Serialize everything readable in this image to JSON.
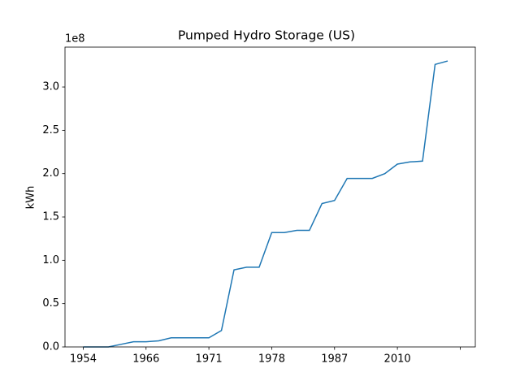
{
  "chart_data": {
    "type": "line",
    "title": "Pumped Hydro Storage (US)",
    "y_label": "kWh",
    "y_offset_label": "1e8",
    "x": [
      0,
      1,
      2,
      3,
      4,
      5,
      6,
      7,
      8,
      9,
      10,
      11,
      12,
      13,
      14,
      15,
      16,
      17,
      18,
      19,
      20,
      21,
      22,
      23,
      24,
      25,
      26,
      27,
      28,
      29
    ],
    "series": [
      {
        "name": "kWh",
        "color": "#1f77b4",
        "values": [
          0,
          0,
          0,
          3000000,
          6000000,
          6000000,
          7000000,
          10500000,
          10500000,
          10500000,
          10500000,
          19000000,
          89000000,
          92000000,
          92000000,
          132000000,
          132000000,
          134500000,
          134500000,
          165500000,
          169000000,
          194500000,
          194500000,
          194500000,
          200000000,
          211000000,
          213500000,
          214500000,
          326000000,
          330000000
        ]
      }
    ],
    "xlim": [
      -1.45,
      31.2
    ],
    "xticks": [
      {
        "value": 0,
        "label": "1954"
      },
      {
        "value": 5,
        "label": "1966"
      },
      {
        "value": 10,
        "label": "1971"
      },
      {
        "value": 15,
        "label": "1978"
      },
      {
        "value": 20,
        "label": "1987"
      },
      {
        "value": 25,
        "label": "2010"
      },
      {
        "value": 30,
        "label": null
      }
    ],
    "ylim": [
      0,
      346000000
    ],
    "yticks": [
      {
        "value": 0,
        "label": "0.0"
      },
      {
        "value": 50000000,
        "label": "0.5"
      },
      {
        "value": 100000000,
        "label": "1.0"
      },
      {
        "value": 150000000,
        "label": "1.5"
      },
      {
        "value": 200000000,
        "label": "2.0"
      },
      {
        "value": 250000000,
        "label": "2.5"
      },
      {
        "value": 300000000,
        "label": "3.0"
      }
    ],
    "grid": false
  }
}
